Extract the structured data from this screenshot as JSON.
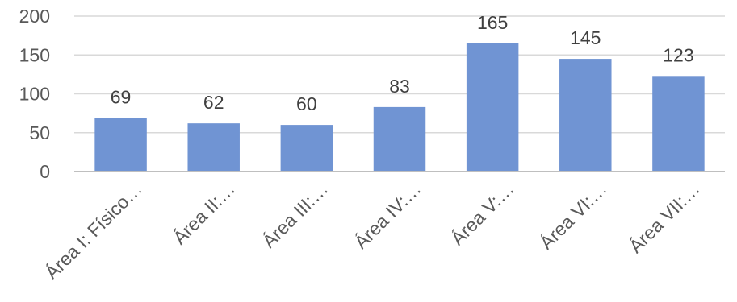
{
  "chart_data": {
    "type": "bar",
    "title": "",
    "xlabel": "",
    "ylabel": "",
    "categories": [
      "Área I: Físico…",
      "Área II:…",
      "Área III:…",
      "Área IV:…",
      "Área V:…",
      "Área VI:…",
      "Área VII:…"
    ],
    "values": [
      69,
      62,
      60,
      83,
      165,
      145,
      123
    ],
    "ylim": [
      0,
      200
    ],
    "yticks": [
      0,
      50,
      100,
      150,
      200
    ],
    "grid": true,
    "legend": "none",
    "bar_color": "#7094d3"
  }
}
